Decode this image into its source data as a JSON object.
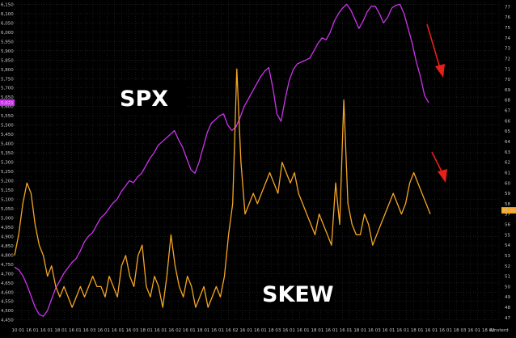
{
  "chart_data": {
    "type": "line",
    "grid": true,
    "annotations": [
      "SPX",
      "SKEW"
    ],
    "x_ticks": [
      "10",
      "01",
      "16",
      "01",
      "16",
      "01",
      "18",
      "01",
      "16",
      "01",
      "16",
      "03",
      "16",
      "01",
      "16",
      "01",
      "16",
      "03",
      "18",
      "01",
      "16",
      "01",
      "16",
      "02",
      "16",
      "01",
      "18",
      "01",
      "16",
      "01",
      "16",
      "02",
      "16",
      "01",
      "16",
      "01",
      "18",
      "03",
      "16",
      "01",
      "16",
      "01",
      "18",
      "01",
      "16",
      "01",
      "16",
      "01",
      "18",
      "01",
      "16",
      "03",
      "16",
      "01",
      "16",
      "01",
      "18",
      "01",
      "16",
      "01",
      "16",
      "01",
      "18",
      "03",
      "16",
      "01",
      "18",
      "02",
      "Amsterd"
    ],
    "left_axis": {
      "ticks": [
        "6,150",
        "6,100",
        "6,050",
        "6,000",
        "5,950",
        "5,900",
        "5,850",
        "5,800",
        "5,750",
        "5,700",
        "5,650",
        "5,600",
        "5,550",
        "5,500",
        "5,450",
        "5,400",
        "5,350",
        "5,300",
        "5,250",
        "5,200",
        "5,150",
        "5,100",
        "5,050",
        "5,000",
        "4,950",
        "4,900",
        "4,850",
        "4,800",
        "4,750",
        "4,700",
        "4,650",
        "4,600",
        "4,550",
        "4,500",
        "4,450"
      ],
      "ylim": [
        4440,
        6165
      ],
      "current_value": "5,621"
    },
    "right_axis": {
      "ticks": [
        "77",
        "76",
        "75",
        "74",
        "73",
        "72",
        "71",
        "70",
        "69",
        "68",
        "67",
        "66",
        "65",
        "64",
        "63",
        "62",
        "61",
        "60",
        "59",
        "58",
        "57",
        "56",
        "55",
        "54",
        "53",
        "52",
        "51",
        "50",
        "49",
        "48",
        "47"
      ],
      "ylim": [
        46.6,
        77.5
      ],
      "current_value": "57.36"
    },
    "series": [
      {
        "name": "SPX",
        "color": "#cc33ee",
        "axis": "left",
        "values": [
          4735,
          4720,
          4690,
          4640,
          4580,
          4520,
          4480,
          4470,
          4500,
          4560,
          4620,
          4660,
          4700,
          4730,
          4760,
          4780,
          4820,
          4870,
          4900,
          4920,
          4960,
          5000,
          5020,
          5050,
          5080,
          5100,
          5140,
          5170,
          5200,
          5190,
          5220,
          5240,
          5280,
          5320,
          5350,
          5390,
          5410,
          5430,
          5450,
          5470,
          5420,
          5380,
          5320,
          5260,
          5240,
          5300,
          5380,
          5460,
          5510,
          5530,
          5550,
          5560,
          5500,
          5470,
          5490,
          5540,
          5600,
          5640,
          5680,
          5720,
          5760,
          5790,
          5810,
          5700,
          5560,
          5520,
          5640,
          5740,
          5800,
          5830,
          5840,
          5850,
          5860,
          5900,
          5940,
          5970,
          5960,
          6000,
          6060,
          6100,
          6130,
          6150,
          6120,
          6070,
          6020,
          6060,
          6110,
          6140,
          6140,
          6100,
          6050,
          6080,
          6130,
          6145,
          6150,
          6100,
          6020,
          5940,
          5840,
          5760,
          5660,
          5620
        ]
      },
      {
        "name": "SKEW",
        "color": "#f5a623",
        "axis": "right",
        "values": [
          53,
          55,
          58,
          60,
          59,
          56,
          54,
          53,
          51,
          52,
          50,
          49,
          50,
          49,
          48,
          49,
          50,
          49,
          50,
          51,
          50,
          50,
          49,
          51,
          50,
          49,
          52,
          53,
          51,
          50,
          53,
          54,
          50,
          49,
          51,
          50,
          48,
          51,
          55,
          52,
          50,
          49,
          51,
          50,
          48,
          49,
          50,
          48,
          49,
          50,
          49,
          51,
          55,
          58,
          71,
          62,
          57,
          58,
          59,
          58,
          59,
          60,
          61,
          60,
          59,
          62,
          61,
          60,
          61,
          59,
          58,
          57,
          56,
          55,
          57,
          56,
          55,
          54,
          60,
          56,
          68,
          58,
          56,
          55,
          55,
          57,
          56,
          54,
          55,
          56,
          57,
          58,
          59,
          58,
          57,
          58,
          60,
          61,
          60,
          59,
          58,
          57
        ]
      }
    ]
  },
  "markers": {
    "arrow_color": "#e8201a",
    "arrow_icon": "red-arrow-icon"
  }
}
